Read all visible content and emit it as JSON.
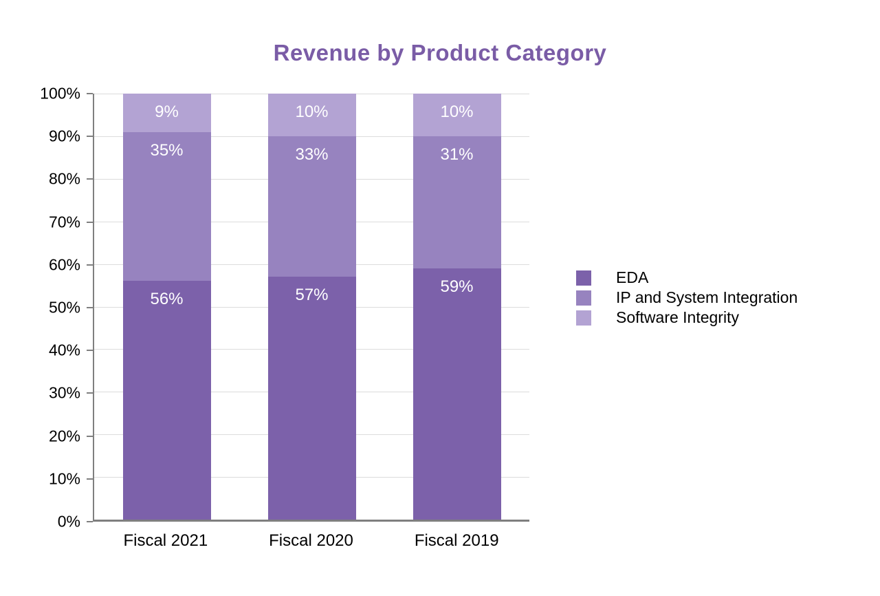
{
  "chart_data": {
    "type": "bar",
    "stacked": true,
    "title": "Revenue by Product Category",
    "title_color": "#7a5ca6",
    "categories": [
      "Fiscal 2021",
      "Fiscal 2020",
      "Fiscal 2019"
    ],
    "series": [
      {
        "name": "EDA",
        "color": "#7c61aa",
        "values": [
          56,
          57,
          59
        ]
      },
      {
        "name": "IP and System Integration",
        "color": "#9783bf",
        "values": [
          35,
          33,
          31
        ]
      },
      {
        "name": "Software Integrity",
        "color": "#b3a3d3",
        "values": [
          9,
          10,
          10
        ]
      }
    ],
    "value_labels": [
      [
        "56%",
        "57%",
        "59%"
      ],
      [
        "35%",
        "33%",
        "31%"
      ],
      [
        "9%",
        "10%",
        "10%"
      ]
    ],
    "y_ticks": [
      "0%",
      "10%",
      "20%",
      "30%",
      "40%",
      "50%",
      "60%",
      "70%",
      "80%",
      "90%",
      "100%"
    ],
    "ylim": [
      0,
      100
    ],
    "grid": true,
    "legend_position": "right",
    "value_label_color": "#ffffff"
  }
}
